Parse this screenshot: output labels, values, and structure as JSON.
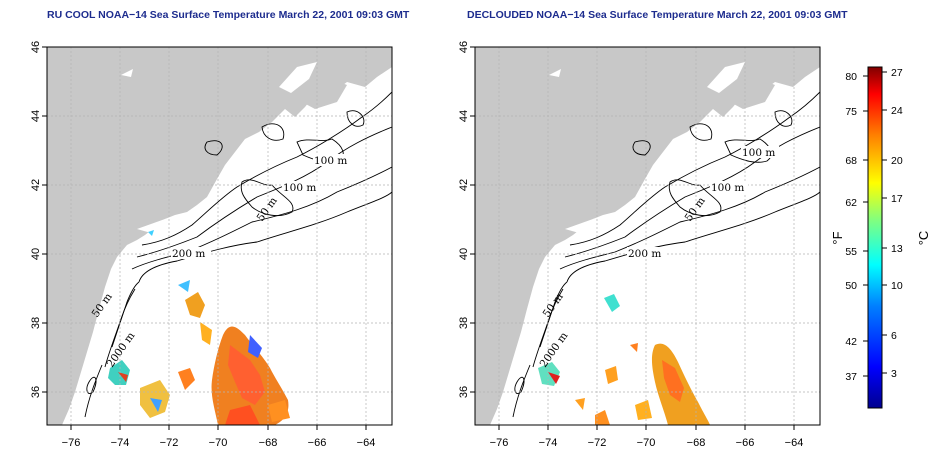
{
  "maps": [
    {
      "id": "left",
      "title": "RU COOL NOAA−14 Sea Surface Temperature March 22, 2001 09:03 GMT"
    },
    {
      "id": "right",
      "title": "DECLOUDED NOAA−14 Sea Surface Temperature March 22, 2001 09:03 GMT"
    }
  ],
  "axes": {
    "longitude_ticks": [
      "−76",
      "−74",
      "−72",
      "−70",
      "−68",
      "−66",
      "−64"
    ],
    "latitude_ticks": [
      "36",
      "38",
      "40",
      "42",
      "44",
      "46"
    ]
  },
  "contour_labels": {
    "left": [
      "100 m",
      "100 m",
      "50 m",
      "200 m",
      "50 m",
      "2000 m"
    ],
    "right": [
      "100 m",
      "100 m",
      "50 m",
      "200 m",
      "50 m",
      "2000 m"
    ]
  },
  "colorbar": {
    "fahrenheit_ticks": [
      "80",
      "75",
      "68",
      "62",
      "55",
      "50",
      "42",
      "37"
    ],
    "celsius_ticks": [
      "27",
      "24",
      "20",
      "17",
      "13",
      "10",
      "6",
      "3"
    ],
    "fahrenheit_unit": "°F",
    "celsius_unit": "°C",
    "colors": [
      "#00008f",
      "#0000ff",
      "#0080ff",
      "#00ffff",
      "#80ff80",
      "#ffff00",
      "#ff8000",
      "#ff0000",
      "#800000"
    ]
  },
  "colors": {
    "title": "#1d2c8e",
    "land": "#c8c8c8",
    "ocean": "#ffffff",
    "grid": "#b4b4b4",
    "contour": "#000000"
  }
}
